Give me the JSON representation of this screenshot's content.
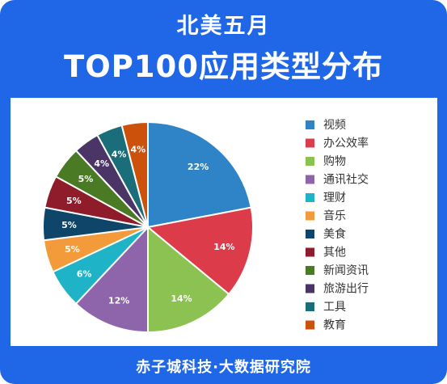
{
  "header": {
    "line1": "北美五月",
    "line2": "TOP100应用类型分布"
  },
  "footer": {
    "text": "赤子城科技·大数据研究院"
  },
  "chart_data": {
    "type": "pie",
    "title": "TOP100应用类型分布",
    "legend_position": "right",
    "start_angle": "12 o'clock",
    "direction": "clockwise",
    "slices": [
      {
        "label": "视频",
        "value": 22,
        "display": "22%",
        "color": "#2e84c6"
      },
      {
        "label": "办公效率",
        "value": 14,
        "display": "14%",
        "color": "#dc3c4a"
      },
      {
        "label": "购物",
        "value": 14,
        "display": "14%",
        "color": "#8cc251"
      },
      {
        "label": "通讯社交",
        "value": 12,
        "display": "12%",
        "color": "#8e64ab"
      },
      {
        "label": "理财",
        "value": 6,
        "display": "6%",
        "color": "#1fb3c7"
      },
      {
        "label": "音乐",
        "value": 5,
        "display": "5%",
        "color": "#f39a3b"
      },
      {
        "label": "美食",
        "value": 5,
        "display": "5%",
        "color": "#0e4569"
      },
      {
        "label": "其他",
        "value": 5,
        "display": "5%",
        "color": "#8e1c2a"
      },
      {
        "label": "新闻资讯",
        "value": 5,
        "display": "5%",
        "color": "#4b7a24"
      },
      {
        "label": "旅游出行",
        "value": 4,
        "display": "4%",
        "color": "#4b3566"
      },
      {
        "label": "工具",
        "value": 4,
        "display": "4%",
        "color": "#1a6e79"
      },
      {
        "label": "教育",
        "value": 4,
        "display": "4%",
        "color": "#cc520b"
      }
    ]
  }
}
